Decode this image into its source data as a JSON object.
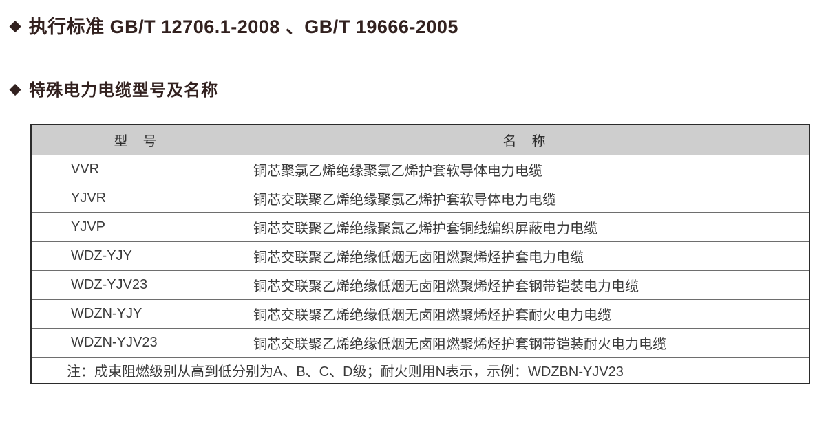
{
  "icons": {
    "diamond_bullet": "◆"
  },
  "colors": {
    "heading_text": "#32211f",
    "table_text": "#3a3a3a",
    "header_row_bg": "#cecece",
    "table_border": "#2b2b2b"
  },
  "headings": {
    "standard": "执行标准 GB/T 12706.1-2008 、GB/T 19666-2005",
    "section": "特殊电力电缆型号及名称"
  },
  "table": {
    "columns": {
      "model": "型　号",
      "name": "名　称"
    },
    "rows": [
      {
        "model": "VVR",
        "name": "铜芯聚氯乙烯绝缘聚氯乙烯护套软导体电力电缆"
      },
      {
        "model": "YJVR",
        "name": "铜芯交联聚乙烯绝缘聚氯乙烯护套软导体电力电缆"
      },
      {
        "model": "YJVP",
        "name": "铜芯交联聚乙烯绝缘聚氯乙烯护套铜线编织屏蔽电力电缆"
      },
      {
        "model": "WDZ-YJY",
        "name": "铜芯交联聚乙烯绝缘低烟无卤阻燃聚烯烃护套电力电缆"
      },
      {
        "model": "WDZ-YJV23",
        "name": "铜芯交联聚乙烯绝缘低烟无卤阻燃聚烯烃护套钢带铠装电力电缆"
      },
      {
        "model": "WDZN-YJY",
        "name": "铜芯交联聚乙烯绝缘低烟无卤阻燃聚烯烃护套耐火电力电缆"
      },
      {
        "model": "WDZN-YJV23",
        "name": "铜芯交联聚乙烯绝缘低烟无卤阻燃聚烯烃护套钢带铠装耐火电力电缆"
      }
    ],
    "note": "注：成束阻燃级别从高到低分别为A、B、C、D级；耐火则用N表示，示例：WDZBN-YJV23"
  }
}
